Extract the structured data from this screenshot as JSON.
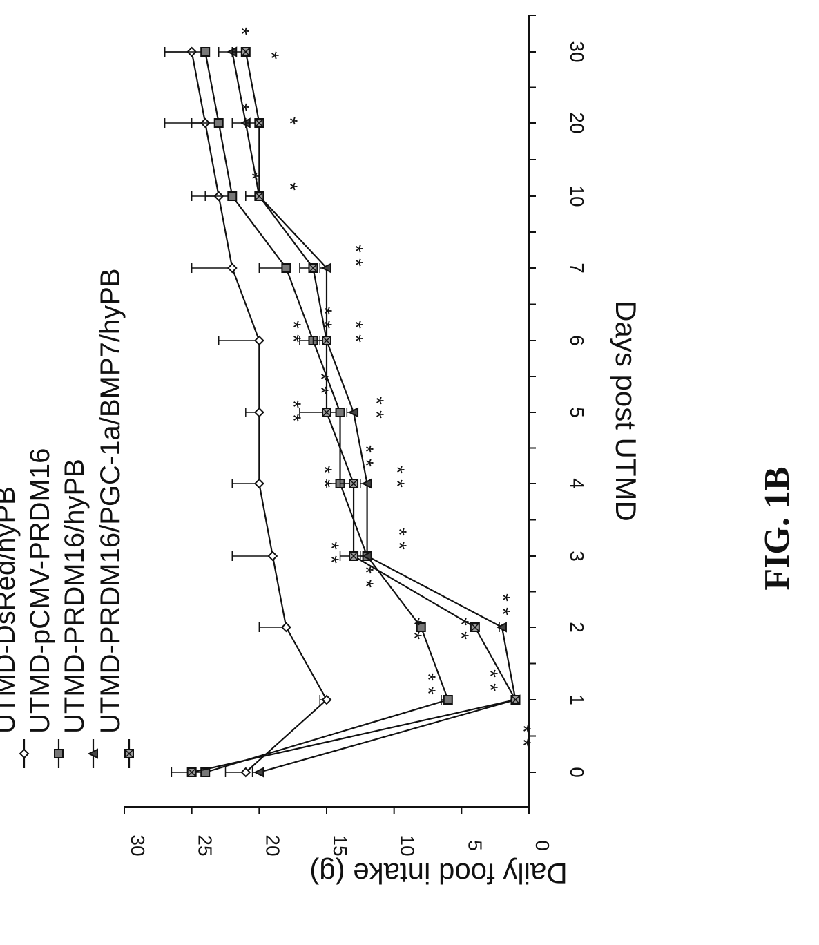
{
  "figure_label": "FIG. 1B",
  "chart_data": {
    "type": "line",
    "orientation": "rotated-90-clockwise",
    "xlabel": "Days post UTMD",
    "ylabel": "Daily food intake (g)",
    "x_categories": [
      "0",
      "1",
      "2",
      "3",
      "4",
      "5",
      "6",
      "7",
      "10",
      "20",
      "30"
    ],
    "ylim": [
      0,
      30
    ],
    "yticks": [
      "0",
      "5",
      "10",
      "15",
      "20",
      "25",
      "30"
    ],
    "grid": false,
    "legend_position": "top-left",
    "series": [
      {
        "name": "UTMD-DsRed/hyPB",
        "marker": "diamond",
        "values": [
          21,
          15,
          18,
          19,
          20,
          20,
          20,
          22,
          23,
          24,
          25
        ],
        "errors": [
          1.5,
          0.5,
          2,
          3,
          2,
          1,
          3,
          3,
          2,
          3,
          2
        ]
      },
      {
        "name": "UTMD-pCMV-PRDM16",
        "marker": "square",
        "values": [
          24,
          6,
          8,
          12,
          14,
          14,
          16,
          18,
          22,
          23,
          24
        ],
        "errors": [
          1,
          0.5,
          0.3,
          1,
          1,
          1,
          1,
          2,
          2,
          2,
          3
        ]
      },
      {
        "name": "UTMD-PRDM16/hyPB",
        "marker": "triangle",
        "values": [
          20,
          1,
          2,
          12,
          12,
          13,
          15,
          15,
          20,
          21,
          22
        ],
        "errors": [
          0.5,
          0.3,
          0.2,
          0.5,
          0.5,
          0.5,
          0.5,
          0.5,
          1,
          1,
          1
        ]
      },
      {
        "name": "UTMD-PRDM16/PGC-1a/BMP7/hyPB",
        "marker": "square-x",
        "values": [
          25,
          1,
          4,
          13,
          13,
          15,
          15,
          16,
          20,
          20,
          21
        ],
        "errors": [
          1.5,
          0.3,
          0.3,
          1,
          1,
          2,
          1,
          1,
          1,
          1,
          1
        ]
      }
    ],
    "annotations": [
      {
        "x": "0",
        "text": "* *"
      },
      {
        "x": "1",
        "text": "* *"
      },
      {
        "x": "1",
        "text": "* *"
      },
      {
        "x": "2",
        "text": "* *"
      },
      {
        "x": "2",
        "text": "* *"
      },
      {
        "x": "2",
        "text": "* *"
      },
      {
        "x": "3",
        "text": "* *"
      },
      {
        "x": "3",
        "text": "* *"
      },
      {
        "x": "3",
        "text": "* *"
      },
      {
        "x": "4",
        "text": "* *"
      },
      {
        "x": "4",
        "text": "* *"
      },
      {
        "x": "4",
        "text": "* *"
      },
      {
        "x": "5",
        "text": "* *"
      },
      {
        "x": "5",
        "text": "* *"
      },
      {
        "x": "5",
        "text": "* *"
      },
      {
        "x": "6",
        "text": "* *"
      },
      {
        "x": "6",
        "text": "* *"
      },
      {
        "x": "6",
        "text": "* *"
      },
      {
        "x": "7",
        "text": "* *"
      },
      {
        "x": "10",
        "text": "*"
      },
      {
        "x": "10",
        "text": "*"
      },
      {
        "x": "20",
        "text": "*"
      },
      {
        "x": "20",
        "text": "*"
      },
      {
        "x": "30",
        "text": "*"
      },
      {
        "x": "30",
        "text": "*"
      }
    ]
  }
}
